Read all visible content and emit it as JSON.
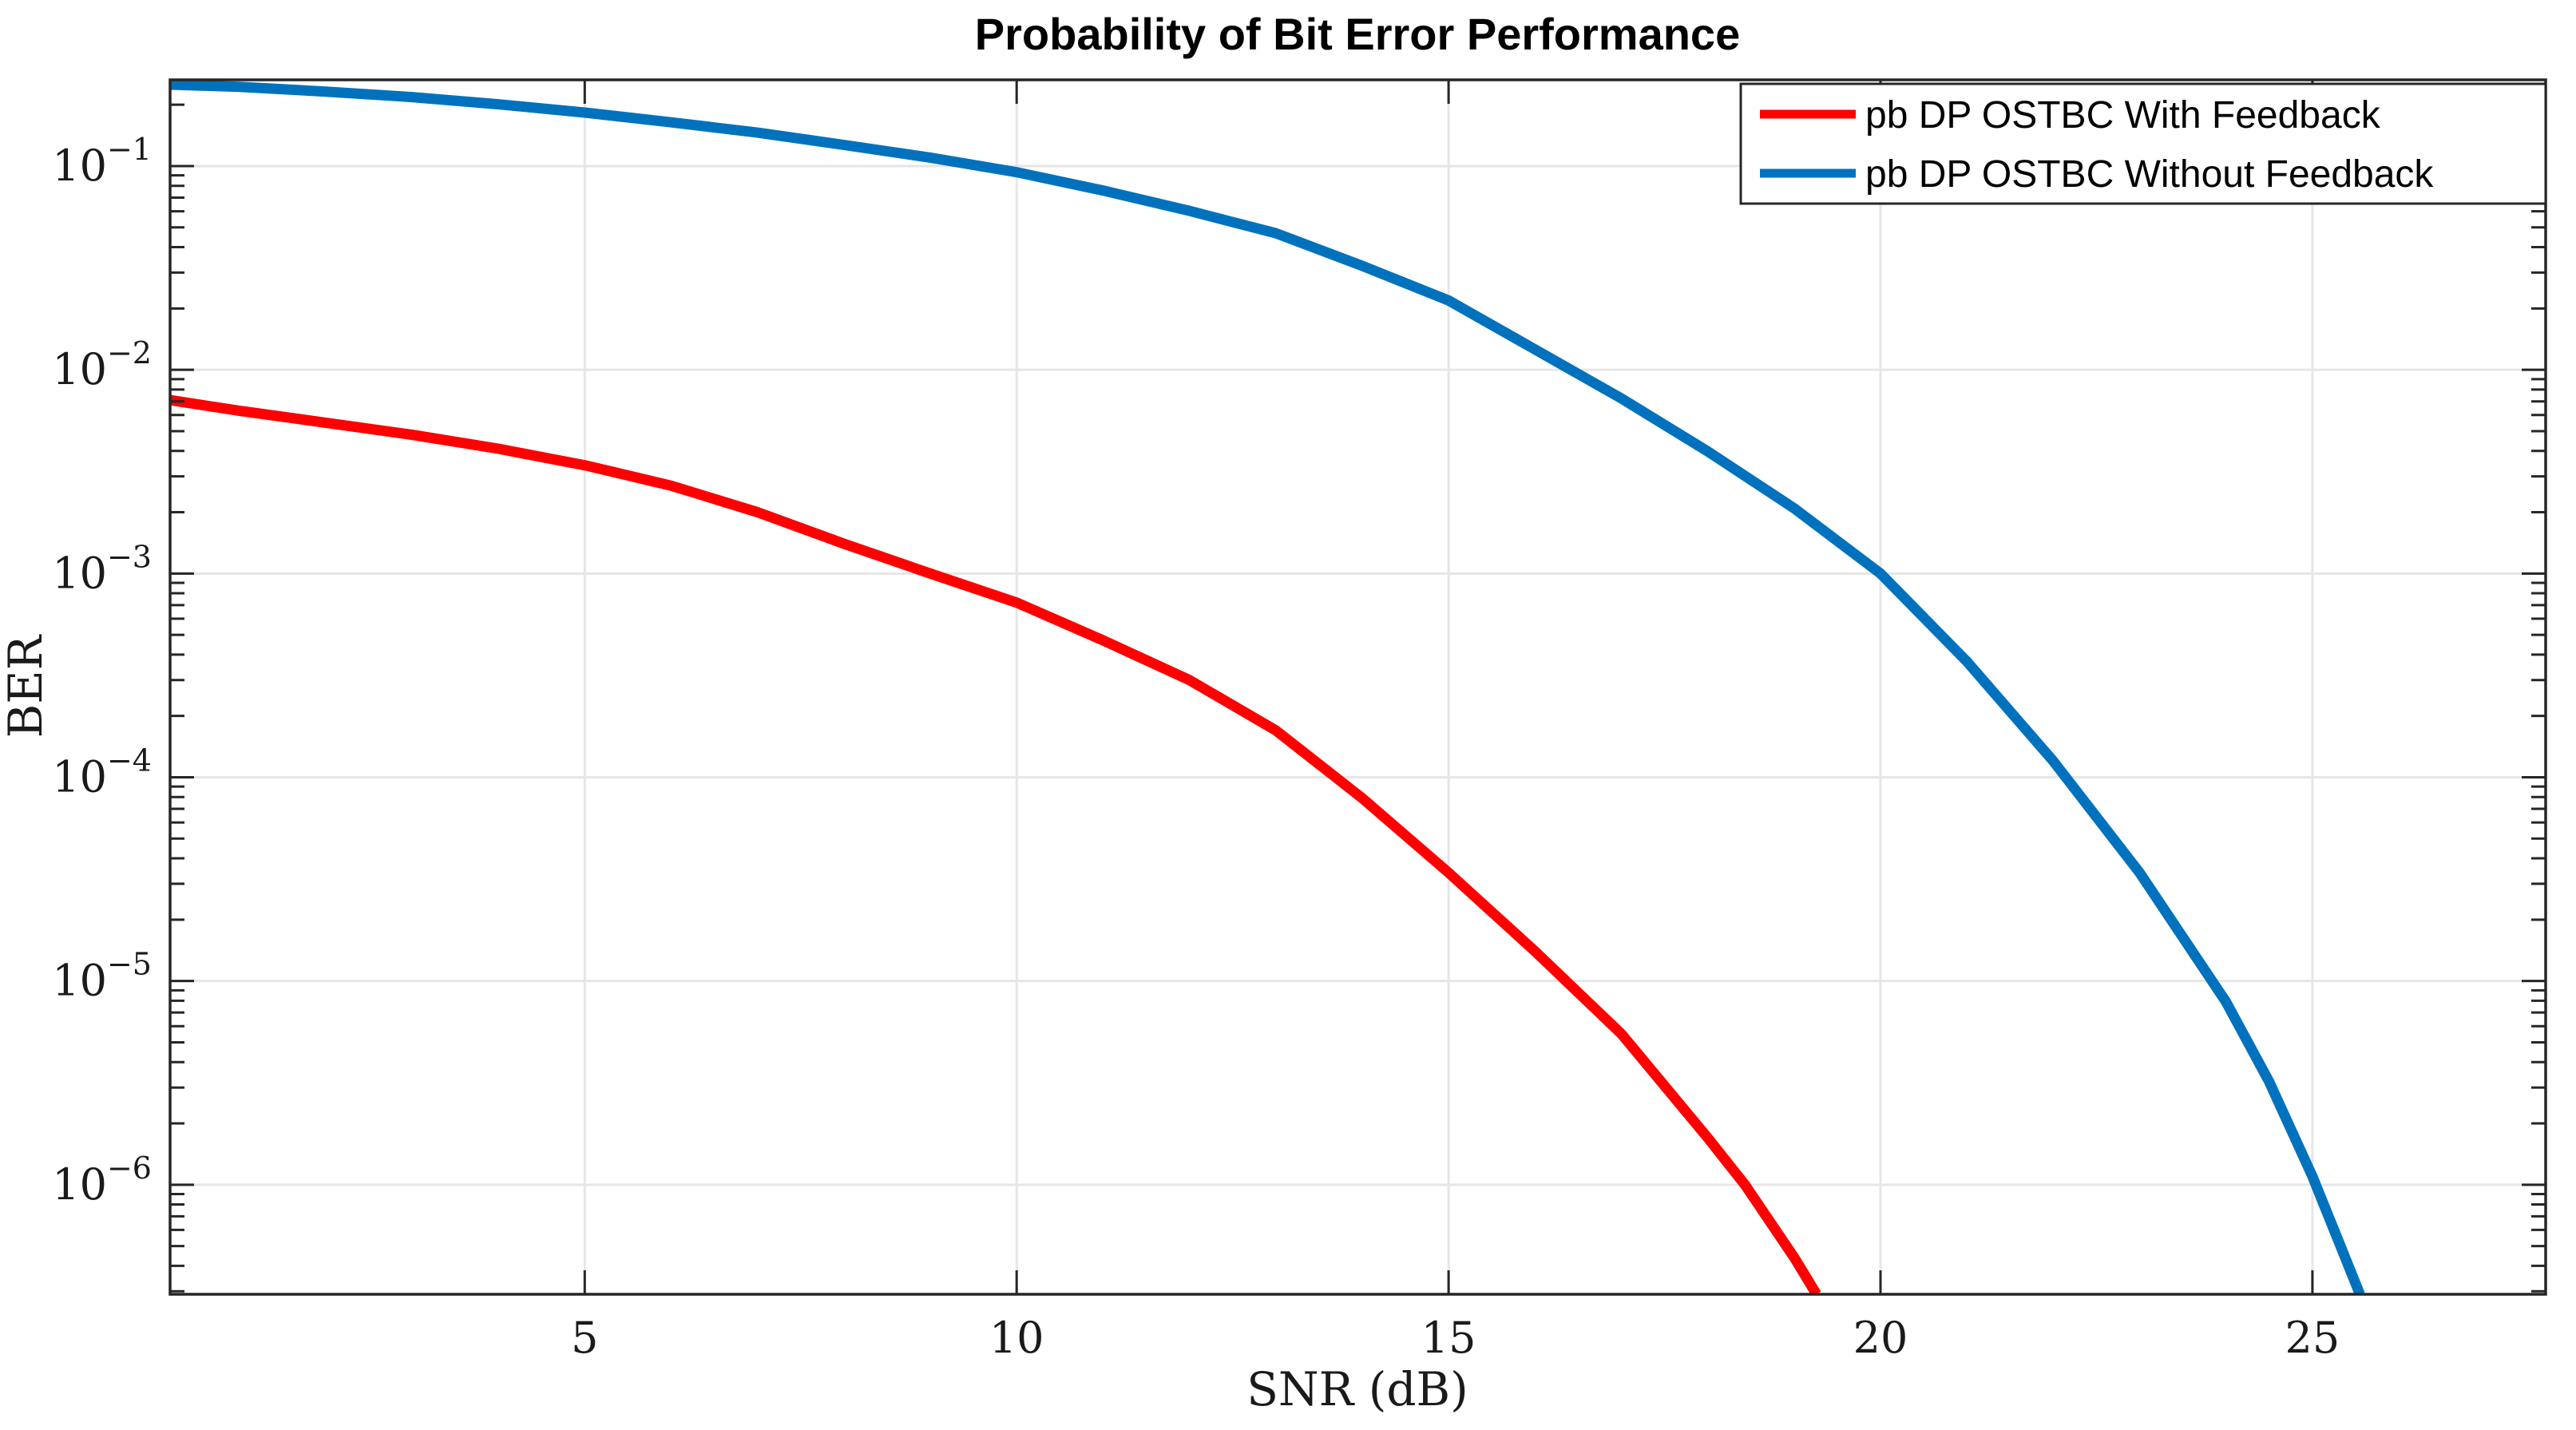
{
  "title": "Probability of Bit Error Performance",
  "axes": {
    "xlabel": "SNR (dB)",
    "ylabel": "BER",
    "x_ticks": [
      5,
      10,
      15,
      20,
      25
    ],
    "y_tick_base": "10",
    "y_tick_exponents": [
      "−1",
      "−2",
      "−3",
      "−4",
      "−5",
      "−6"
    ]
  },
  "legend": {
    "entries": [
      {
        "label": "pb DP OSTBC With Feedback",
        "color": "#FF0000"
      },
      {
        "label": "pb DP OSTBC Without Feedback",
        "color": "#0072BD"
      }
    ]
  },
  "colors": {
    "axis": "#262626",
    "grid": "#E6E6E6",
    "background": "#FFFFFF",
    "red_series": "#FF0000",
    "blue_series": "#0072BD"
  },
  "chart_data": {
    "type": "line",
    "title": "Probability of Bit Error Performance",
    "xlabel": "SNR (dB)",
    "ylabel": "BER",
    "x_scale": "linear",
    "y_scale": "log",
    "xlim": [
      0.2,
      27.7
    ],
    "ylim": [
      2.9e-07,
      0.265
    ],
    "x_ticks": [
      5,
      10,
      15,
      20,
      25
    ],
    "y_ticks": [
      0.1,
      0.01,
      0.001,
      0.0001,
      1e-05,
      1e-06
    ],
    "grid": true,
    "legend_position": "northeast",
    "series": [
      {
        "name": "pb DP OSTBC With Feedback",
        "color": "#FF0000",
        "points": [
          [
            0.2,
            0.0071
          ],
          [
            1,
            0.0063
          ],
          [
            2,
            0.0055
          ],
          [
            3,
            0.0048
          ],
          [
            4,
            0.0041
          ],
          [
            5,
            0.0034
          ],
          [
            6,
            0.0027
          ],
          [
            7,
            0.002
          ],
          [
            8,
            0.0014
          ],
          [
            9,
            0.001
          ],
          [
            10,
            0.00072
          ],
          [
            11,
            0.00047
          ],
          [
            12,
            0.0003
          ],
          [
            13,
            0.00017
          ],
          [
            14,
            7.9e-05
          ],
          [
            15,
            3.4e-05
          ],
          [
            16,
            1.4e-05
          ],
          [
            17,
            5.5e-06
          ],
          [
            18,
            1.7e-06
          ],
          [
            18.43,
            1e-06
          ],
          [
            19,
            4.4e-07
          ],
          [
            19.26,
            2.9e-07
          ]
        ]
      },
      {
        "name": "pb DP OSTBC Without Feedback",
        "color": "#0072BD",
        "points": [
          [
            0.2,
            0.251
          ],
          [
            1,
            0.245
          ],
          [
            2,
            0.232
          ],
          [
            3,
            0.218
          ],
          [
            4,
            0.201
          ],
          [
            5,
            0.183
          ],
          [
            6,
            0.164
          ],
          [
            7,
            0.146
          ],
          [
            8,
            0.127
          ],
          [
            9,
            0.11
          ],
          [
            10,
            0.0933
          ],
          [
            11,
            0.0759
          ],
          [
            12,
            0.0603
          ],
          [
            13,
            0.0468
          ],
          [
            14,
            0.0324
          ],
          [
            15,
            0.0219
          ],
          [
            16,
            0.0126
          ],
          [
            17,
            0.00724
          ],
          [
            18,
            0.00398
          ],
          [
            19,
            0.00209
          ],
          [
            20,
            0.001
          ],
          [
            21,
            0.00037
          ],
          [
            22,
            0.00012
          ],
          [
            23,
            3.4e-05
          ],
          [
            24,
            7.9e-06
          ],
          [
            24.5,
            3.2e-06
          ],
          [
            25,
            1.1e-06
          ],
          [
            25.55,
            2.9e-07
          ]
        ]
      }
    ]
  }
}
